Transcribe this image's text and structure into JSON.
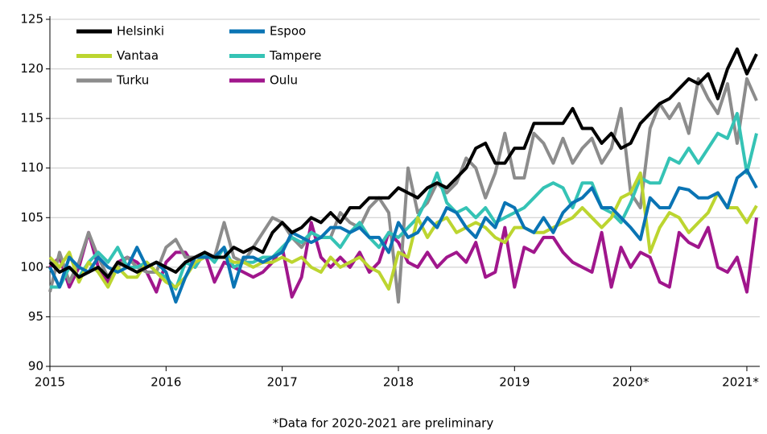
{
  "chart_data": {
    "type": "line",
    "note": "*Data for 2020-2021 are preliminary",
    "categories": [
      "2015",
      null,
      null,
      null,
      null,
      null,
      null,
      null,
      null,
      null,
      null,
      null,
      "2016",
      null,
      null,
      null,
      null,
      null,
      null,
      null,
      null,
      null,
      null,
      null,
      "2017",
      null,
      null,
      null,
      null,
      null,
      null,
      null,
      null,
      null,
      null,
      null,
      "2018",
      null,
      null,
      null,
      null,
      null,
      null,
      null,
      null,
      null,
      null,
      null,
      "2019",
      null,
      null,
      null,
      null,
      null,
      null,
      null,
      null,
      null,
      null,
      null,
      "2020*",
      null,
      null,
      null,
      null,
      null,
      null,
      null,
      null,
      null,
      null,
      null,
      "2021*",
      null
    ],
    "ylim": [
      90,
      125
    ],
    "yticks": [
      90,
      95,
      100,
      105,
      110,
      115,
      120,
      125
    ],
    "grid": true,
    "legend": "upper left",
    "series": [
      {
        "name": "Helsinki",
        "color": "#000000",
        "values": [
          100.5,
          99.5,
          100,
          99,
          99.5,
          100,
          99,
          100.5,
          100,
          99.5,
          100,
          100.5,
          100,
          99.5,
          100.5,
          101,
          101.5,
          101,
          101,
          102,
          101.5,
          102,
          101.5,
          103.5,
          104.5,
          103.5,
          104,
          105,
          104.5,
          105.5,
          104.5,
          106,
          106,
          107,
          107,
          107,
          108,
          107.5,
          107,
          108,
          108.5,
          108,
          109,
          110,
          112,
          112.5,
          110.5,
          110.5,
          112,
          112,
          114.5,
          114.5,
          114.5,
          114.5,
          116,
          114,
          114,
          112.5,
          113.5,
          112,
          112.5,
          114.5,
          115.5,
          116.5,
          117,
          118,
          119,
          118.5,
          119.5,
          117,
          120,
          122,
          119.5,
          121.5
        ]
      },
      {
        "name": "Espoo",
        "color": "#0a74b4",
        "values": [
          100,
          98,
          101,
          100,
          99.5,
          101,
          100,
          99.5,
          100,
          102,
          100,
          100.5,
          99.5,
          96.5,
          99,
          101,
          101,
          101,
          102,
          98,
          101,
          101,
          100.5,
          101,
          101.5,
          103.5,
          103,
          102.5,
          103,
          104,
          104,
          103.5,
          104,
          103,
          103,
          101.5,
          104.5,
          103,
          103.5,
          105,
          104,
          106,
          105.5,
          104,
          103,
          105,
          104,
          106.5,
          106,
          104,
          103.5,
          105,
          103.5,
          105.5,
          106.5,
          107,
          108,
          106,
          106,
          105,
          104,
          102.8,
          107,
          106,
          106,
          108,
          107.8,
          107,
          107,
          107.5,
          106,
          109,
          109.8,
          108
        ]
      },
      {
        "name": "Vantaa",
        "color": "#bcd530",
        "values": [
          101,
          100,
          101.5,
          98.5,
          100.5,
          99.5,
          98,
          100,
          99,
          99,
          100.5,
          99.5,
          98.5,
          98,
          99,
          100.5,
          101,
          101,
          101,
          100.5,
          100.5,
          100,
          100.5,
          100.5,
          101,
          100.5,
          101,
          100,
          99.5,
          101,
          100,
          100.5,
          101,
          100,
          99.5,
          97.8,
          101.5,
          101,
          105,
          103,
          104.5,
          105,
          103.5,
          104,
          104.5,
          104,
          103,
          102.5,
          104,
          104,
          103.5,
          103.5,
          104,
          104.5,
          105,
          106,
          105,
          104,
          105,
          107,
          107.5,
          109.5,
          101.5,
          104,
          105.5,
          105,
          103.5,
          104.5,
          105.5,
          107.5,
          106,
          106,
          104.5,
          106.2
        ]
      },
      {
        "name": "Tampere",
        "color": "#35c3b5",
        "values": [
          98,
          98,
          100,
          99,
          100.5,
          101.5,
          100.5,
          102,
          100,
          100,
          100.5,
          99.5,
          99,
          97.8,
          100.5,
          100,
          101.5,
          100.5,
          102,
          100,
          100.5,
          100.5,
          101,
          101,
          102,
          103,
          102.5,
          103.5,
          103,
          103,
          102,
          103.5,
          104.5,
          103,
          102,
          103.5,
          103,
          104,
          105,
          107,
          109.5,
          106.5,
          105.5,
          106,
          105,
          106,
          104.5,
          105,
          105.5,
          106,
          107,
          108,
          108.5,
          108,
          106,
          108.5,
          108.5,
          106,
          105.5,
          104.5,
          106.5,
          109,
          108.5,
          108.5,
          111,
          110.5,
          112,
          110.5,
          112,
          113.5,
          113,
          115.5,
          109.5,
          113.5
        ]
      },
      {
        "name": "Turku",
        "color": "#8c8c8c",
        "values": [
          97.5,
          101.5,
          98.5,
          100.5,
          103.5,
          101,
          99,
          100,
          101,
          100,
          99.5,
          99.5,
          102,
          102.8,
          101,
          101,
          101.5,
          101,
          104.5,
          101,
          100.5,
          102,
          103.5,
          105,
          104.5,
          103,
          102,
          103.5,
          103,
          103,
          105.5,
          104.5,
          104,
          106,
          107,
          105.5,
          96.5,
          110,
          105.5,
          106.5,
          108.5,
          107.5,
          108.5,
          111,
          110,
          107,
          109.5,
          113.5,
          109,
          109,
          113.5,
          112.5,
          110.5,
          113,
          110.5,
          112,
          113,
          110.5,
          112,
          116,
          107.5,
          106,
          114,
          116.5,
          115,
          116.5,
          113.5,
          119,
          117,
          115.5,
          118.5,
          112.5,
          119,
          116.8
        ]
      },
      {
        "name": "Oulu",
        "color": "#a0168c",
        "values": [
          100,
          101,
          98,
          100,
          103.5,
          100,
          98.5,
          100.5,
          101,
          100.5,
          99.5,
          97.5,
          100.5,
          101.5,
          101.5,
          100,
          101.5,
          98.5,
          100.5,
          100,
          99.5,
          99,
          99.5,
          100.5,
          102,
          97,
          99,
          104.5,
          101,
          100,
          101,
          100,
          101.5,
          99.5,
          100.5,
          103.5,
          102.5,
          100.5,
          100,
          101.5,
          100,
          101,
          101.5,
          100.5,
          102.5,
          99,
          99.5,
          104,
          98,
          102,
          101.5,
          103,
          103,
          101.5,
          100.5,
          100,
          99.5,
          103.5,
          98,
          102,
          100,
          101.5,
          101,
          98.5,
          98,
          103.5,
          102.5,
          102,
          104,
          100,
          99.5,
          101,
          97.5,
          105
        ]
      }
    ]
  }
}
